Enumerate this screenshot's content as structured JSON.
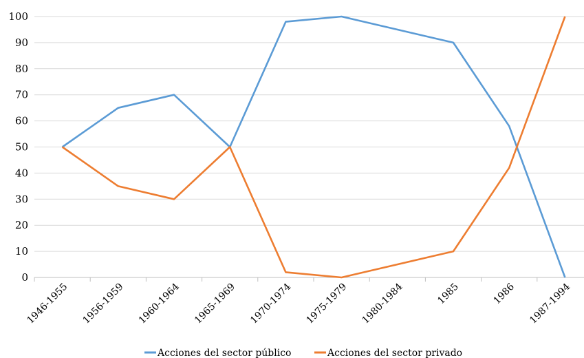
{
  "chart_data": {
    "type": "line",
    "categories": [
      "1946-1955",
      "1956-1959",
      "1960-1964",
      "1965-1969",
      "1970-1974",
      "1975-1979",
      "1980-1984",
      "1985",
      "1986",
      "1987-1994"
    ],
    "series": [
      {
        "name": "Acciones del sector público",
        "color": "#5B9BD5",
        "values": [
          50,
          65,
          70,
          50,
          98,
          100,
          null,
          90,
          58,
          0
        ]
      },
      {
        "name": "Acciones del sector privado",
        "color": "#ED7D31",
        "values": [
          50,
          35,
          30,
          50,
          2,
          0,
          null,
          10,
          42,
          100
        ]
      }
    ],
    "yticks": [
      0,
      10,
      20,
      30,
      40,
      50,
      60,
      70,
      80,
      90,
      100
    ],
    "ylim": [
      0,
      100
    ],
    "grid": true,
    "legend": "bottom"
  }
}
